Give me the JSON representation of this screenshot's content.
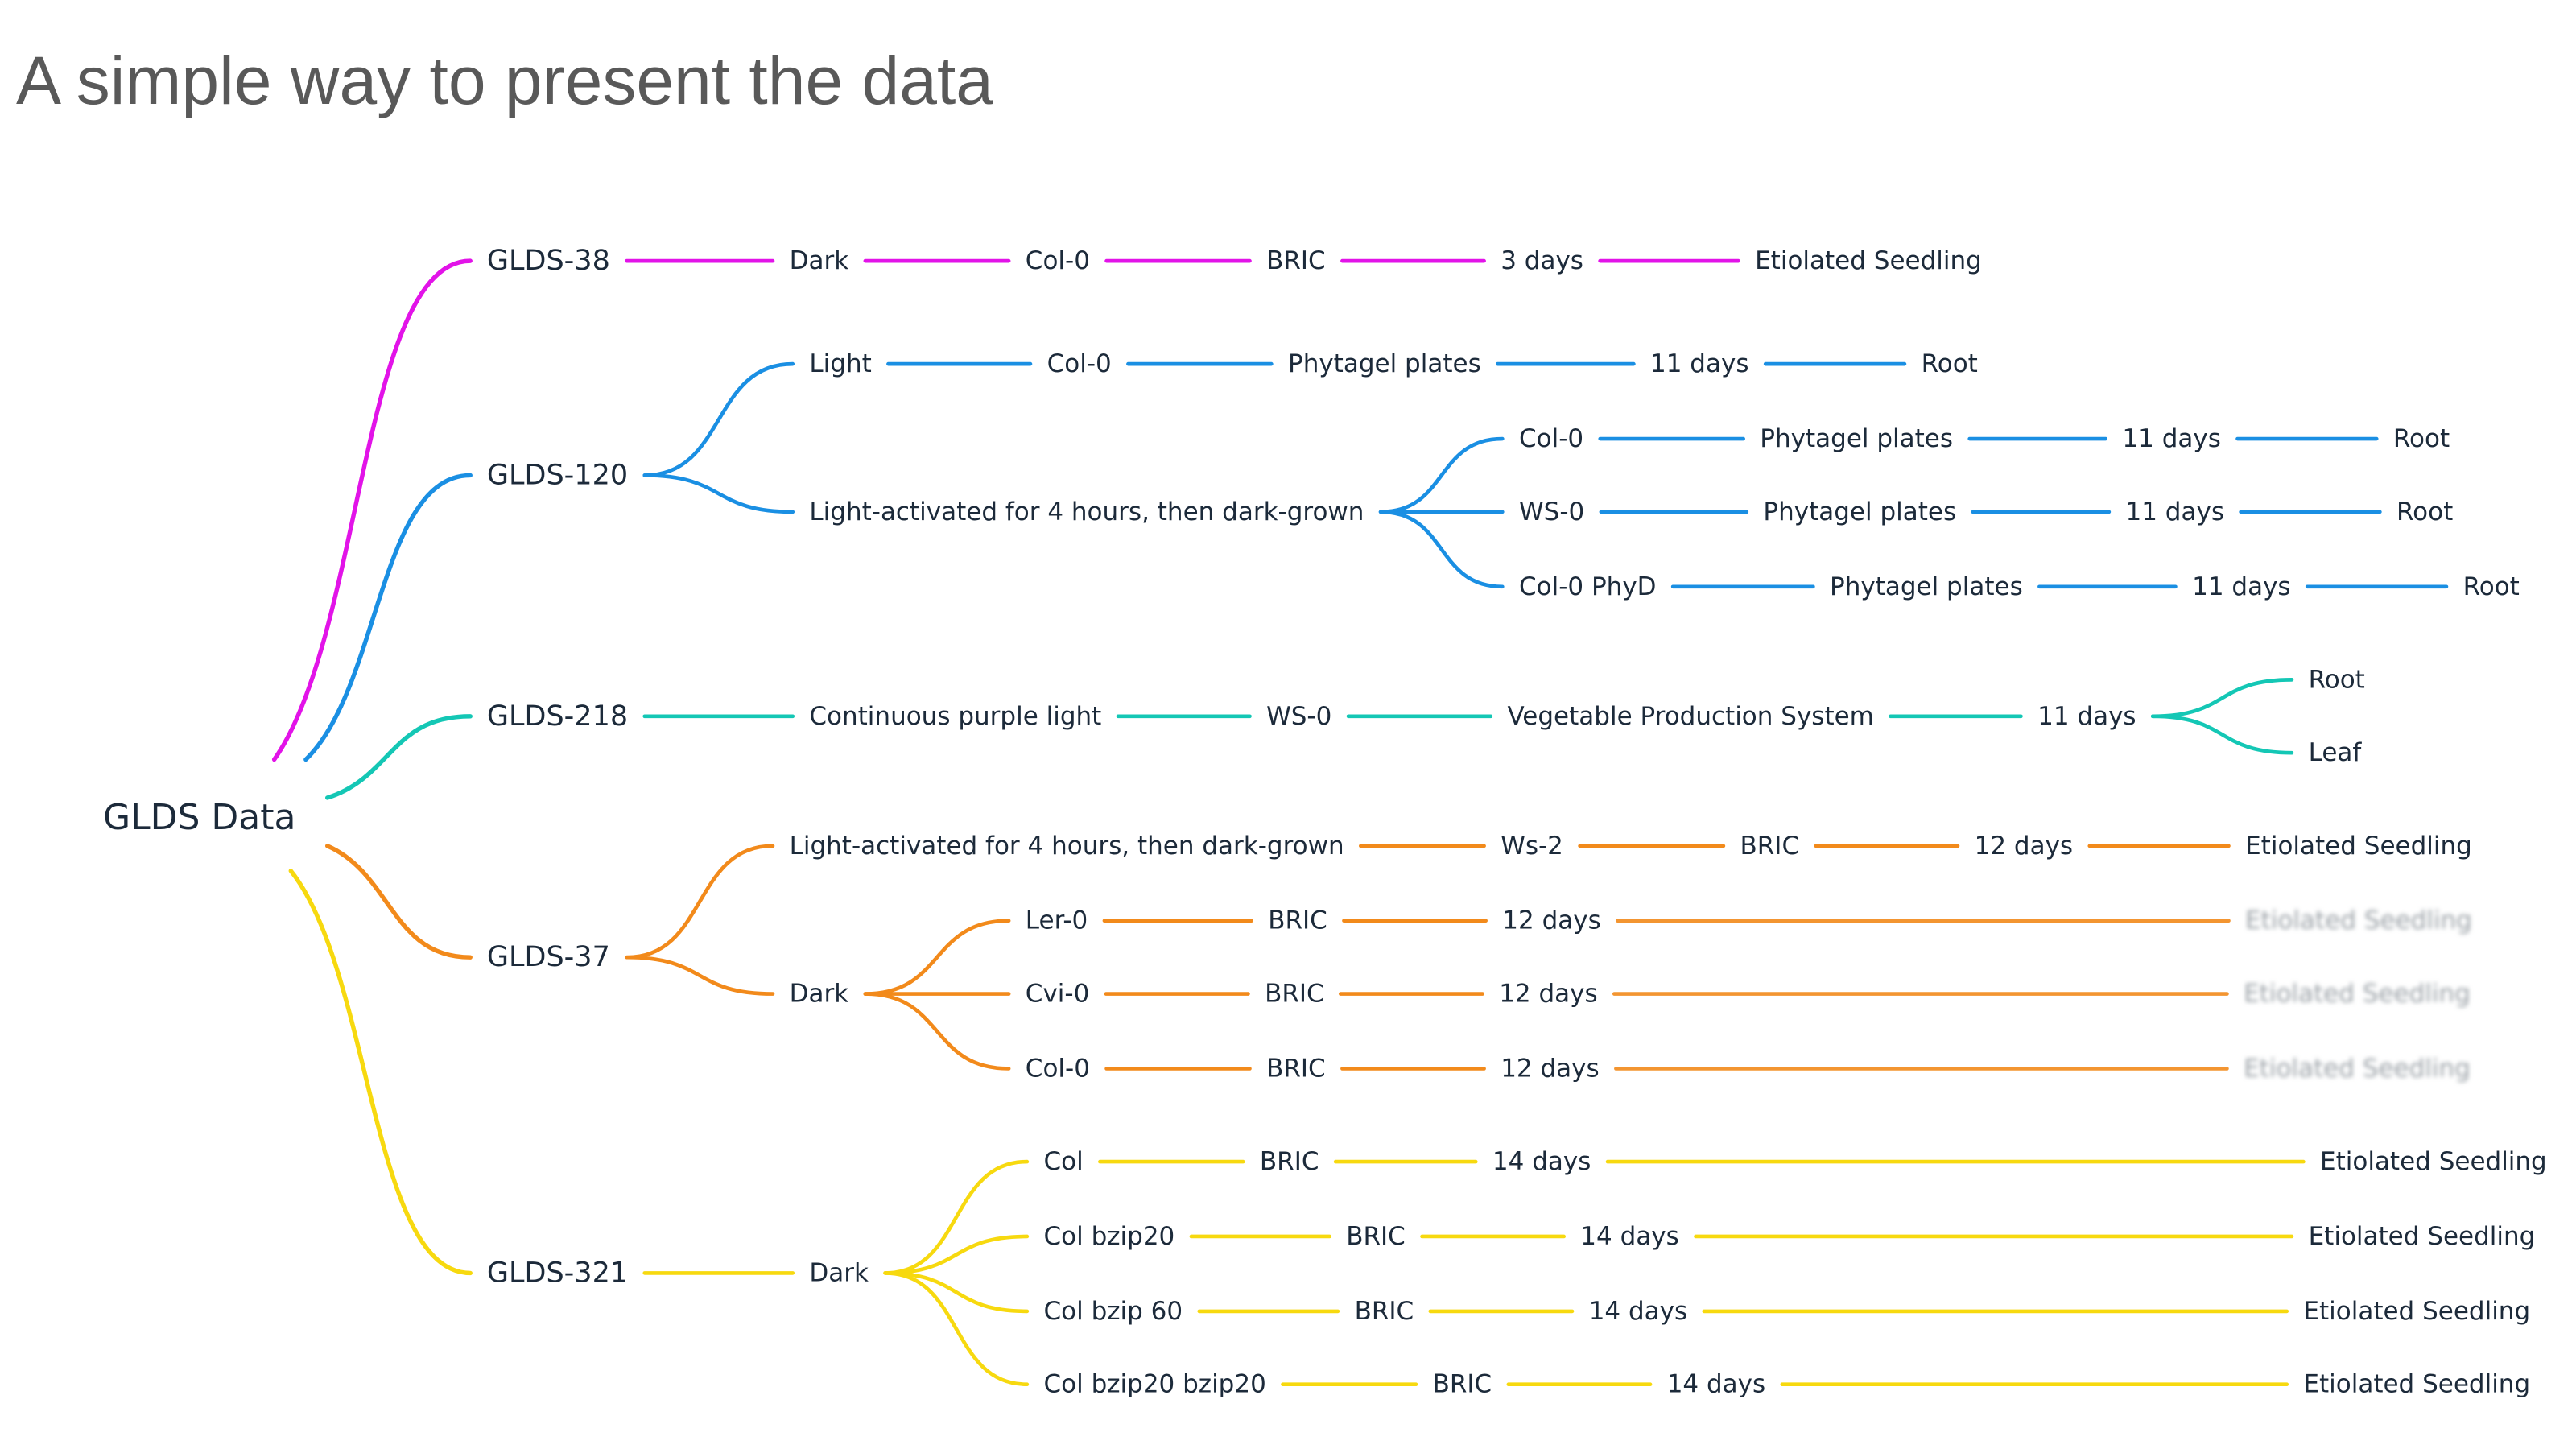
{
  "title": "A simple way to present the data",
  "colors": {
    "gl38": "#e213e8",
    "gl120": "#1a8fe3",
    "gl218": "#14c7b5",
    "gl37": "#f28a1b",
    "gl321": "#f7d90f"
  },
  "mindmap": {
    "root": "GLDS Data",
    "nodes": [
      {
        "id": "g38",
        "label": "GLDS-38",
        "parent": "root",
        "color": "gl38",
        "level": 1
      },
      {
        "id": "g38-a",
        "label": "Dark",
        "parent": "g38",
        "color": "gl38"
      },
      {
        "id": "g38-b",
        "label": "Col-0",
        "parent": "g38-a",
        "color": "gl38"
      },
      {
        "id": "g38-c",
        "label": "BRIC",
        "parent": "g38-b",
        "color": "gl38"
      },
      {
        "id": "g38-d",
        "label": "3 days",
        "parent": "g38-c",
        "color": "gl38"
      },
      {
        "id": "g38-e",
        "label": "Etiolated Seedling",
        "parent": "g38-d",
        "color": "gl38"
      },
      {
        "id": "g120",
        "label": "GLDS-120",
        "parent": "root",
        "color": "gl120",
        "level": 1
      },
      {
        "id": "g120-l",
        "label": "Light",
        "parent": "g120",
        "color": "gl120"
      },
      {
        "id": "g120-l1",
        "label": "Col-0",
        "parent": "g120-l",
        "color": "gl120"
      },
      {
        "id": "g120-l2",
        "label": "Phytagel plates",
        "parent": "g120-l1",
        "color": "gl120"
      },
      {
        "id": "g120-l3",
        "label": "11 days",
        "parent": "g120-l2",
        "color": "gl120"
      },
      {
        "id": "g120-l4",
        "label": "Root",
        "parent": "g120-l3",
        "color": "gl120"
      },
      {
        "id": "g120-d",
        "label": "Light-activated for 4 hours, then dark-grown",
        "parent": "g120",
        "color": "gl120"
      },
      {
        "id": "g120-d1",
        "label": "Col-0",
        "parent": "g120-d",
        "color": "gl120"
      },
      {
        "id": "g120-d1a",
        "label": "Phytagel plates",
        "parent": "g120-d1",
        "color": "gl120"
      },
      {
        "id": "g120-d1b",
        "label": "11 days",
        "parent": "g120-d1a",
        "color": "gl120"
      },
      {
        "id": "g120-d1c",
        "label": "Root",
        "parent": "g120-d1b",
        "color": "gl120"
      },
      {
        "id": "g120-d2",
        "label": "WS-0",
        "parent": "g120-d",
        "color": "gl120"
      },
      {
        "id": "g120-d2a",
        "label": "Phytagel plates",
        "parent": "g120-d2",
        "color": "gl120"
      },
      {
        "id": "g120-d2b",
        "label": "11 days",
        "parent": "g120-d2a",
        "color": "gl120"
      },
      {
        "id": "g120-d2c",
        "label": "Root",
        "parent": "g120-d2b",
        "color": "gl120"
      },
      {
        "id": "g120-d3",
        "label": "Col-0 PhyD",
        "parent": "g120-d",
        "color": "gl120"
      },
      {
        "id": "g120-d3a",
        "label": "Phytagel plates",
        "parent": "g120-d3",
        "color": "gl120"
      },
      {
        "id": "g120-d3b",
        "label": "11 days",
        "parent": "g120-d3a",
        "color": "gl120"
      },
      {
        "id": "g120-d3c",
        "label": "Root",
        "parent": "g120-d3b",
        "color": "gl120"
      },
      {
        "id": "g218",
        "label": "GLDS-218",
        "parent": "root",
        "color": "gl218",
        "level": 1
      },
      {
        "id": "g218-a",
        "label": "Continuous purple light",
        "parent": "g218",
        "color": "gl218"
      },
      {
        "id": "g218-b",
        "label": "WS-0",
        "parent": "g218-a",
        "color": "gl218"
      },
      {
        "id": "g218-c",
        "label": "Vegetable Production System",
        "parent": "g218-b",
        "color": "gl218"
      },
      {
        "id": "g218-d",
        "label": "11 days",
        "parent": "g218-c",
        "color": "gl218"
      },
      {
        "id": "g218-e",
        "label": "Root",
        "parent": "g218-d",
        "color": "gl218"
      },
      {
        "id": "g218-f",
        "label": "Leaf",
        "parent": "g218-d",
        "color": "gl218"
      },
      {
        "id": "g37",
        "label": "GLDS-37",
        "parent": "root",
        "color": "gl37",
        "level": 1
      },
      {
        "id": "g37-l",
        "label": "Light-activated for 4 hours, then dark-grown",
        "parent": "g37",
        "color": "gl37"
      },
      {
        "id": "g37-l1",
        "label": "Ws-2",
        "parent": "g37-l",
        "color": "gl37"
      },
      {
        "id": "g37-l2",
        "label": "BRIC",
        "parent": "g37-l1",
        "color": "gl37"
      },
      {
        "id": "g37-l3",
        "label": "12 days",
        "parent": "g37-l2",
        "color": "gl37"
      },
      {
        "id": "g37-l4",
        "label": "Etiolated Seedling",
        "parent": "g37-l3",
        "color": "gl37"
      },
      {
        "id": "g37-d",
        "label": "Dark",
        "parent": "g37",
        "color": "gl37"
      },
      {
        "id": "g37-d1",
        "label": "Ler-0",
        "parent": "g37-d",
        "color": "gl37"
      },
      {
        "id": "g37-d1a",
        "label": "BRIC",
        "parent": "g37-d1",
        "color": "gl37"
      },
      {
        "id": "g37-d1b",
        "label": "12 days",
        "parent": "g37-d1a",
        "color": "gl37"
      },
      {
        "id": "g37-d1c",
        "label": "Etiolated Seedling",
        "parent": "g37-d1b",
        "color": "gl37",
        "blurred": true
      },
      {
        "id": "g37-d2",
        "label": "Cvi-0",
        "parent": "g37-d",
        "color": "gl37"
      },
      {
        "id": "g37-d2a",
        "label": "BRIC",
        "parent": "g37-d2",
        "color": "gl37"
      },
      {
        "id": "g37-d2b",
        "label": "12 days",
        "parent": "g37-d2a",
        "color": "gl37"
      },
      {
        "id": "g37-d2c",
        "label": "Etiolated Seedling",
        "parent": "g37-d2b",
        "color": "gl37",
        "blurred": true
      },
      {
        "id": "g37-d3",
        "label": "Col-0",
        "parent": "g37-d",
        "color": "gl37"
      },
      {
        "id": "g37-d3a",
        "label": "BRIC",
        "parent": "g37-d3",
        "color": "gl37"
      },
      {
        "id": "g37-d3b",
        "label": "12 days",
        "parent": "g37-d3a",
        "color": "gl37"
      },
      {
        "id": "g37-d3c",
        "label": "Etiolated Seedling",
        "parent": "g37-d3b",
        "color": "gl37",
        "blurred": true
      },
      {
        "id": "g321",
        "label": "GLDS-321",
        "parent": "root",
        "color": "gl321",
        "level": 1
      },
      {
        "id": "g321-d",
        "label": "Dark",
        "parent": "g321",
        "color": "gl321"
      },
      {
        "id": "g321-1",
        "label": "Col",
        "parent": "g321-d",
        "color": "gl321"
      },
      {
        "id": "g321-1a",
        "label": "BRIC",
        "parent": "g321-1",
        "color": "gl321"
      },
      {
        "id": "g321-1b",
        "label": "14 days",
        "parent": "g321-1a",
        "color": "gl321"
      },
      {
        "id": "g321-1c",
        "label": "Etiolated Seedling",
        "parent": "g321-1b",
        "color": "gl321"
      },
      {
        "id": "g321-2",
        "label": "Col bzip20",
        "parent": "g321-d",
        "color": "gl321"
      },
      {
        "id": "g321-2a",
        "label": "BRIC",
        "parent": "g321-2",
        "color": "gl321"
      },
      {
        "id": "g321-2b",
        "label": "14 days",
        "parent": "g321-2a",
        "color": "gl321"
      },
      {
        "id": "g321-2c",
        "label": "Etiolated Seedling",
        "parent": "g321-2b",
        "color": "gl321"
      },
      {
        "id": "g321-3",
        "label": "Col bzip 60",
        "parent": "g321-d",
        "color": "gl321"
      },
      {
        "id": "g321-3a",
        "label": "BRIC",
        "parent": "g321-3",
        "color": "gl321"
      },
      {
        "id": "g321-3b",
        "label": "14 days",
        "parent": "g321-3a",
        "color": "gl321"
      },
      {
        "id": "g321-3c",
        "label": "Etiolated Seedling",
        "parent": "g321-3b",
        "color": "gl321"
      },
      {
        "id": "g321-4",
        "label": "Col bzip20 bzip20",
        "parent": "g321-d",
        "color": "gl321"
      },
      {
        "id": "g321-4a",
        "label": "BRIC",
        "parent": "g321-4",
        "color": "gl321"
      },
      {
        "id": "g321-4b",
        "label": "14 days",
        "parent": "g321-4a",
        "color": "gl321"
      },
      {
        "id": "g321-4c",
        "label": "Etiolated Seedling",
        "parent": "g321-4b",
        "color": "gl321"
      }
    ]
  }
}
